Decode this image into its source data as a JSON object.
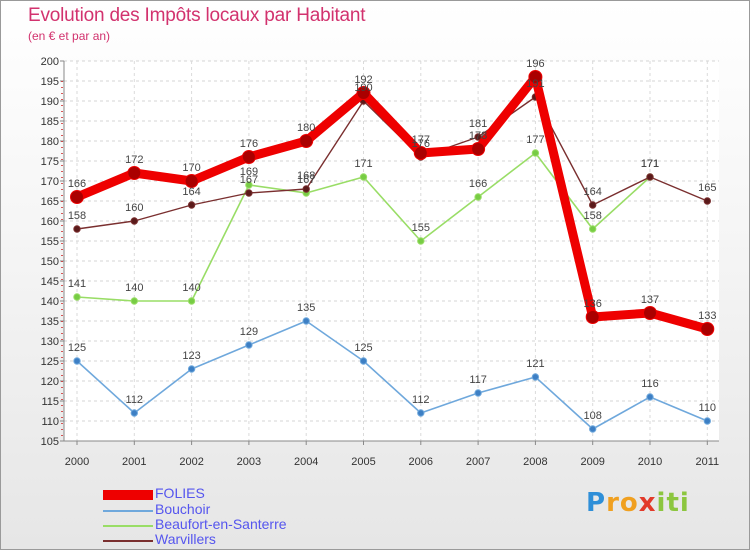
{
  "header": {
    "title": "Evolution des Impôts locaux par Habitant",
    "subtitle": "(en € et par an)"
  },
  "logo": {
    "letters": [
      "P",
      "r",
      "o",
      "x",
      "i",
      "t",
      "i"
    ],
    "text": "Proxiti"
  },
  "colors": {
    "folies": "#ee0000",
    "bouchoir": "#6fa8dc",
    "beaufort": "#99dd66",
    "warvillers": "#7a2f2f",
    "title": "#d2326e",
    "legend_text": "#5555ee"
  },
  "chart_data": {
    "type": "line",
    "title": "Evolution des Impôts locaux par Habitant",
    "subtitle": "(en € et par an)",
    "xlabel": "",
    "ylabel": "",
    "x": [
      "2000",
      "2001",
      "2002",
      "2003",
      "2004",
      "2005",
      "2006",
      "2007",
      "2008",
      "2009",
      "2010",
      "2011"
    ],
    "ylim": [
      105,
      200
    ],
    "yticks": [
      105,
      110,
      115,
      120,
      125,
      130,
      135,
      140,
      145,
      150,
      155,
      160,
      165,
      170,
      175,
      180,
      185,
      190,
      195,
      200
    ],
    "grid": true,
    "legend": "bottom-left",
    "series": [
      {
        "name": "FOLIES",
        "values": [
          166,
          172,
          170,
          176,
          180,
          192,
          177,
          178,
          196,
          136,
          137,
          133
        ]
      },
      {
        "name": "Bouchoir",
        "values": [
          125,
          112,
          123,
          129,
          135,
          125,
          112,
          117,
          121,
          108,
          116,
          110
        ]
      },
      {
        "name": "Beaufort-en-Santerre",
        "values": [
          141,
          140,
          140,
          169,
          167,
          171,
          155,
          166,
          177,
          158,
          171,
          null
        ]
      },
      {
        "name": "Warvillers",
        "values": [
          158,
          160,
          164,
          167,
          168,
          190,
          176,
          181,
          191,
          164,
          171,
          165
        ]
      }
    ]
  }
}
